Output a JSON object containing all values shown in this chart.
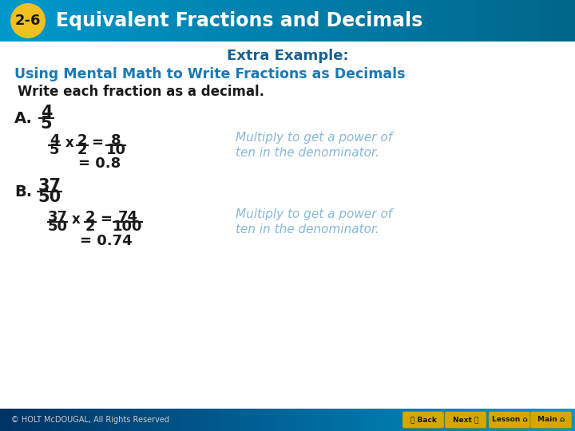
{
  "header_bg_left": "#0099cc",
  "header_bg_right": "#006699",
  "header_badge_bg": "#f0c020",
  "header_badge_text": "2-6",
  "header_badge_text_color": "#1a1a1a",
  "header_title": "Equivalent Fractions and Decimals",
  "header_text_color": "#ffffff",
  "body_bg": "#f0f4f8",
  "extra_example_color": "#1a6090",
  "subtitle_color": "#1a7ab5",
  "instruction_color": "#1a1a1a",
  "label_color": "#1a1a1a",
  "step_color": "#1a1a1a",
  "hint_color": "#8ab8d8",
  "footer_bg_left": "#003366",
  "footer_bg_right": "#0099cc",
  "footer_text": "© HOLT McDOUGAL, All Rights Reserved",
  "footer_text_color": "#cccccc",
  "button_bg": "#d4a800",
  "button_text_color": "#1a1a1a"
}
